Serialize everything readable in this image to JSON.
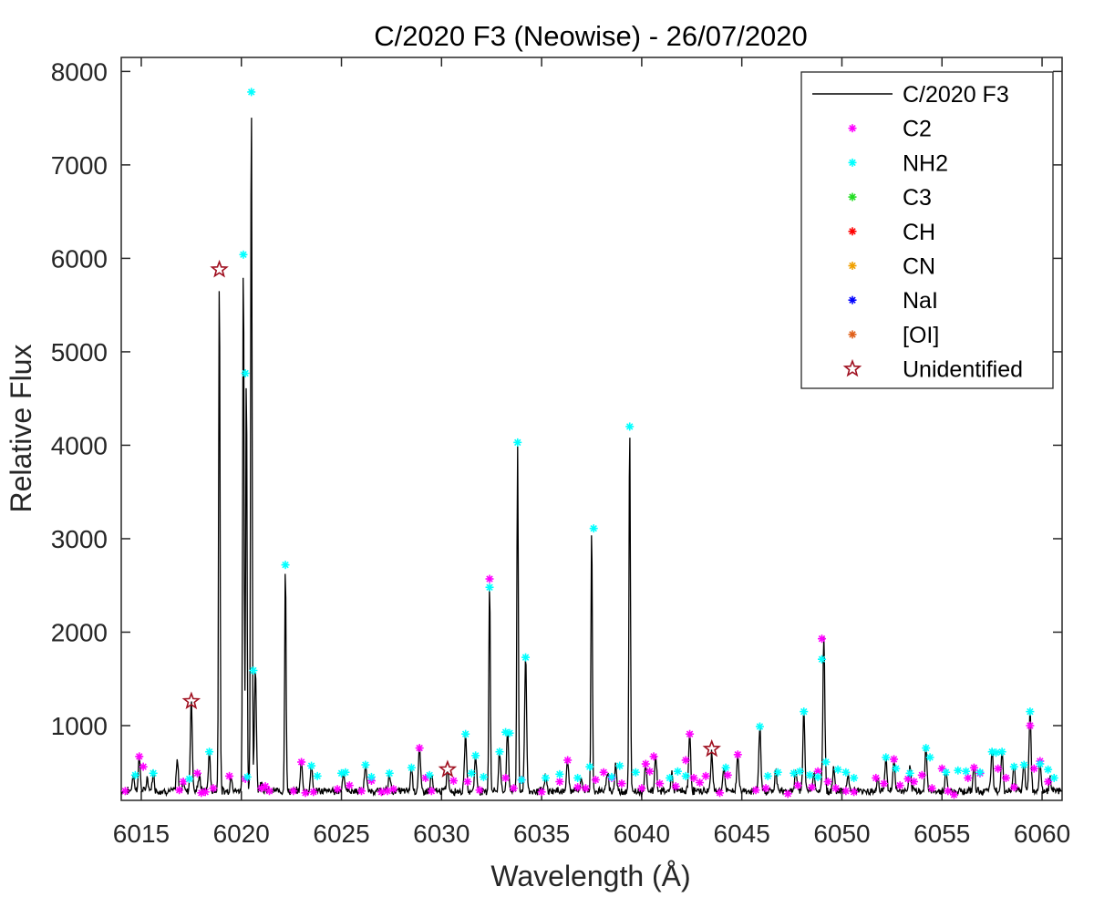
{
  "chart_data": {
    "type": "line",
    "title": "C/2020 F3 (Neowise) - 26/07/2020",
    "xlabel": "Wavelength (Å)",
    "ylabel": "Relative Flux",
    "xlim": [
      6014,
      6061
    ],
    "ylim": [
      200,
      8150
    ],
    "xticks": [
      6015,
      6020,
      6025,
      6030,
      6035,
      6040,
      6045,
      6050,
      6055,
      6060
    ],
    "yticks": [
      1000,
      2000,
      3000,
      4000,
      5000,
      6000,
      7000,
      8000
    ],
    "grid": false,
    "legend_position": "top-right",
    "baseline": 280,
    "series": [
      {
        "name": "C/2020 F3",
        "kind": "spectrum-line",
        "color": "#000000",
        "peaks": [
          {
            "x": 6014.6,
            "y": 460
          },
          {
            "x": 6014.9,
            "y": 650
          },
          {
            "x": 6015.3,
            "y": 420
          },
          {
            "x": 6015.6,
            "y": 480
          },
          {
            "x": 6016.8,
            "y": 600
          },
          {
            "x": 6017.1,
            "y": 380
          },
          {
            "x": 6017.5,
            "y": 1250
          },
          {
            "x": 6017.9,
            "y": 460
          },
          {
            "x": 6018.4,
            "y": 700
          },
          {
            "x": 6018.9,
            "y": 5870
          },
          {
            "x": 6019.5,
            "y": 450
          },
          {
            "x": 6020.1,
            "y": 6030
          },
          {
            "x": 6020.25,
            "y": 4760
          },
          {
            "x": 6020.5,
            "y": 7770
          },
          {
            "x": 6020.7,
            "y": 1580
          },
          {
            "x": 6021.0,
            "y": 400
          },
          {
            "x": 6022.2,
            "y": 2720
          },
          {
            "x": 6023.0,
            "y": 600
          },
          {
            "x": 6023.5,
            "y": 560
          },
          {
            "x": 6025.1,
            "y": 500
          },
          {
            "x": 6026.2,
            "y": 570
          },
          {
            "x": 6027.4,
            "y": 470
          },
          {
            "x": 6028.5,
            "y": 540
          },
          {
            "x": 6028.9,
            "y": 760
          },
          {
            "x": 6029.5,
            "y": 450
          },
          {
            "x": 6030.3,
            "y": 520
          },
          {
            "x": 6031.2,
            "y": 900
          },
          {
            "x": 6031.7,
            "y": 680
          },
          {
            "x": 6032.4,
            "y": 2550
          },
          {
            "x": 6032.9,
            "y": 720
          },
          {
            "x": 6033.3,
            "y": 920
          },
          {
            "x": 6033.8,
            "y": 4020
          },
          {
            "x": 6034.2,
            "y": 1720
          },
          {
            "x": 6035.2,
            "y": 440
          },
          {
            "x": 6036.3,
            "y": 630
          },
          {
            "x": 6037.0,
            "y": 420
          },
          {
            "x": 6037.5,
            "y": 3110
          },
          {
            "x": 6038.3,
            "y": 500
          },
          {
            "x": 6038.7,
            "y": 560
          },
          {
            "x": 6039.4,
            "y": 4200
          },
          {
            "x": 6040.2,
            "y": 580
          },
          {
            "x": 6040.7,
            "y": 670
          },
          {
            "x": 6041.5,
            "y": 460
          },
          {
            "x": 6042.4,
            "y": 910
          },
          {
            "x": 6043.5,
            "y": 700
          },
          {
            "x": 6044.1,
            "y": 540
          },
          {
            "x": 6044.8,
            "y": 680
          },
          {
            "x": 6045.9,
            "y": 980
          },
          {
            "x": 6046.7,
            "y": 500
          },
          {
            "x": 6047.7,
            "y": 500
          },
          {
            "x": 6048.1,
            "y": 1140
          },
          {
            "x": 6048.6,
            "y": 480
          },
          {
            "x": 6049.1,
            "y": 1920
          },
          {
            "x": 6049.6,
            "y": 520
          },
          {
            "x": 6050.3,
            "y": 480
          },
          {
            "x": 6051.8,
            "y": 420
          },
          {
            "x": 6052.2,
            "y": 640
          },
          {
            "x": 6052.6,
            "y": 620
          },
          {
            "x": 6053.4,
            "y": 520
          },
          {
            "x": 6054.2,
            "y": 760
          },
          {
            "x": 6055.2,
            "y": 500
          },
          {
            "x": 6056.6,
            "y": 560
          },
          {
            "x": 6057.5,
            "y": 720
          },
          {
            "x": 6058.0,
            "y": 720
          },
          {
            "x": 6058.6,
            "y": 560
          },
          {
            "x": 6059.1,
            "y": 600
          },
          {
            "x": 6059.4,
            "y": 1140
          },
          {
            "x": 6059.9,
            "y": 600
          },
          {
            "x": 6060.4,
            "y": 430
          }
        ]
      },
      {
        "name": "C2",
        "kind": "marker",
        "marker": "asterisk",
        "color": "#ff00ff",
        "points": [
          [
            6014.2,
            300
          ],
          [
            6014.9,
            670
          ],
          [
            6015.1,
            560
          ],
          [
            6016.9,
            310
          ],
          [
            6017.1,
            400
          ],
          [
            6017.8,
            490
          ],
          [
            6018.0,
            280
          ],
          [
            6018.2,
            290
          ],
          [
            6018.6,
            330
          ],
          [
            6019.4,
            460
          ],
          [
            6020.2,
            430
          ],
          [
            6021.0,
            330
          ],
          [
            6021.2,
            350
          ],
          [
            6021.4,
            300
          ],
          [
            6022.6,
            300
          ],
          [
            6023.0,
            610
          ],
          [
            6023.2,
            280
          ],
          [
            6023.6,
            290
          ],
          [
            6024.8,
            320
          ],
          [
            6025.4,
            360
          ],
          [
            6026.0,
            300
          ],
          [
            6026.5,
            410
          ],
          [
            6027.0,
            290
          ],
          [
            6027.3,
            300
          ],
          [
            6027.6,
            320
          ],
          [
            6028.9,
            760
          ],
          [
            6029.2,
            440
          ],
          [
            6029.5,
            300
          ],
          [
            6030.6,
            410
          ],
          [
            6031.3,
            400
          ],
          [
            6031.9,
            310
          ],
          [
            6032.4,
            2570
          ],
          [
            6033.2,
            440
          ],
          [
            6033.6,
            330
          ],
          [
            6034.0,
            420
          ],
          [
            6035.0,
            290
          ],
          [
            6035.9,
            400
          ],
          [
            6036.3,
            630
          ],
          [
            6036.8,
            340
          ],
          [
            6037.2,
            330
          ],
          [
            6037.7,
            420
          ],
          [
            6038.1,
            500
          ],
          [
            6038.5,
            440
          ],
          [
            6039.0,
            380
          ],
          [
            6040.0,
            330
          ],
          [
            6040.2,
            590
          ],
          [
            6040.4,
            510
          ],
          [
            6040.6,
            670
          ],
          [
            6040.9,
            380
          ],
          [
            6041.7,
            350
          ],
          [
            6042.2,
            630
          ],
          [
            6042.4,
            910
          ],
          [
            6042.6,
            440
          ],
          [
            6042.9,
            390
          ],
          [
            6043.2,
            460
          ],
          [
            6043.9,
            280
          ],
          [
            6044.3,
            470
          ],
          [
            6044.8,
            690
          ],
          [
            6045.7,
            310
          ],
          [
            6046.2,
            330
          ],
          [
            6047.3,
            270
          ],
          [
            6047.8,
            360
          ],
          [
            6048.5,
            340
          ],
          [
            6048.8,
            510
          ],
          [
            6049.0,
            1930
          ],
          [
            6049.3,
            400
          ],
          [
            6049.7,
            330
          ],
          [
            6050.2,
            300
          ],
          [
            6050.6,
            290
          ],
          [
            6051.7,
            440
          ],
          [
            6052.1,
            380
          ],
          [
            6052.6,
            640
          ],
          [
            6052.9,
            360
          ],
          [
            6053.3,
            430
          ],
          [
            6053.6,
            400
          ],
          [
            6054.0,
            470
          ],
          [
            6054.5,
            330
          ],
          [
            6055.0,
            540
          ],
          [
            6055.3,
            300
          ],
          [
            6055.6,
            260
          ],
          [
            6056.3,
            440
          ],
          [
            6056.6,
            550
          ],
          [
            6056.9,
            490
          ],
          [
            6057.8,
            540
          ],
          [
            6058.2,
            440
          ],
          [
            6058.6,
            340
          ],
          [
            6059.4,
            1000
          ],
          [
            6059.6,
            540
          ],
          [
            6059.9,
            620
          ],
          [
            6060.3,
            400
          ]
        ]
      },
      {
        "name": "NH2",
        "kind": "marker",
        "marker": "asterisk",
        "color": "#00ffff",
        "points": [
          [
            6014.7,
            470
          ],
          [
            6015.6,
            490
          ],
          [
            6017.4,
            430
          ],
          [
            6018.4,
            720
          ],
          [
            6020.1,
            6040
          ],
          [
            6020.2,
            4770
          ],
          [
            6020.5,
            7780
          ],
          [
            6020.6,
            1590
          ],
          [
            6020.3,
            450
          ],
          [
            6022.2,
            2720
          ],
          [
            6023.5,
            570
          ],
          [
            6023.8,
            460
          ],
          [
            6025.0,
            490
          ],
          [
            6025.2,
            500
          ],
          [
            6026.2,
            580
          ],
          [
            6026.5,
            450
          ],
          [
            6027.4,
            490
          ],
          [
            6028.5,
            550
          ],
          [
            6029.4,
            470
          ],
          [
            6031.2,
            910
          ],
          [
            6031.5,
            490
          ],
          [
            6031.7,
            680
          ],
          [
            6032.1,
            450
          ],
          [
            6032.4,
            2480
          ],
          [
            6032.9,
            720
          ],
          [
            6033.2,
            930
          ],
          [
            6033.4,
            920
          ],
          [
            6033.8,
            4030
          ],
          [
            6034.0,
            420
          ],
          [
            6034.2,
            1730
          ],
          [
            6035.2,
            440
          ],
          [
            6035.9,
            480
          ],
          [
            6036.8,
            440
          ],
          [
            6037.4,
            560
          ],
          [
            6037.6,
            3110
          ],
          [
            6038.5,
            450
          ],
          [
            6038.9,
            570
          ],
          [
            6039.4,
            4200
          ],
          [
            6039.7,
            500
          ],
          [
            6041.4,
            440
          ],
          [
            6041.8,
            510
          ],
          [
            6042.2,
            460
          ],
          [
            6044.2,
            550
          ],
          [
            6045.9,
            990
          ],
          [
            6046.3,
            460
          ],
          [
            6046.8,
            500
          ],
          [
            6047.6,
            490
          ],
          [
            6047.9,
            510
          ],
          [
            6048.1,
            1150
          ],
          [
            6048.4,
            470
          ],
          [
            6048.8,
            450
          ],
          [
            6049.0,
            1710
          ],
          [
            6049.2,
            610
          ],
          [
            6049.8,
            530
          ],
          [
            6050.2,
            500
          ],
          [
            6050.6,
            440
          ],
          [
            6052.2,
            660
          ],
          [
            6052.7,
            540
          ],
          [
            6053.4,
            490
          ],
          [
            6054.2,
            760
          ],
          [
            6054.4,
            660
          ],
          [
            6055.2,
            500
          ],
          [
            6055.8,
            520
          ],
          [
            6056.2,
            510
          ],
          [
            6056.9,
            500
          ],
          [
            6057.5,
            720
          ],
          [
            6057.7,
            710
          ],
          [
            6058.0,
            720
          ],
          [
            6058.6,
            560
          ],
          [
            6059.1,
            580
          ],
          [
            6059.4,
            1150
          ],
          [
            6059.9,
            590
          ],
          [
            6060.3,
            530
          ],
          [
            6060.6,
            440
          ]
        ]
      },
      {
        "name": "C3",
        "kind": "marker",
        "marker": "asterisk",
        "color": "#22dd22",
        "points": []
      },
      {
        "name": "CH",
        "kind": "marker",
        "marker": "asterisk",
        "color": "#ff0000",
        "points": []
      },
      {
        "name": "CN",
        "kind": "marker",
        "marker": "asterisk",
        "color": "#f0a000",
        "points": []
      },
      {
        "name": "NaI",
        "kind": "marker",
        "marker": "asterisk",
        "color": "#0000ff",
        "points": []
      },
      {
        "name": "[OI]",
        "kind": "marker",
        "marker": "asterisk",
        "color": "#e0601a",
        "points": []
      },
      {
        "name": "Unidentified",
        "kind": "marker",
        "marker": "star-open",
        "color": "#a01020",
        "points": [
          [
            6017.5,
            1260
          ],
          [
            6018.9,
            5880
          ],
          [
            6030.3,
            530
          ],
          [
            6043.5,
            750
          ]
        ]
      }
    ]
  }
}
